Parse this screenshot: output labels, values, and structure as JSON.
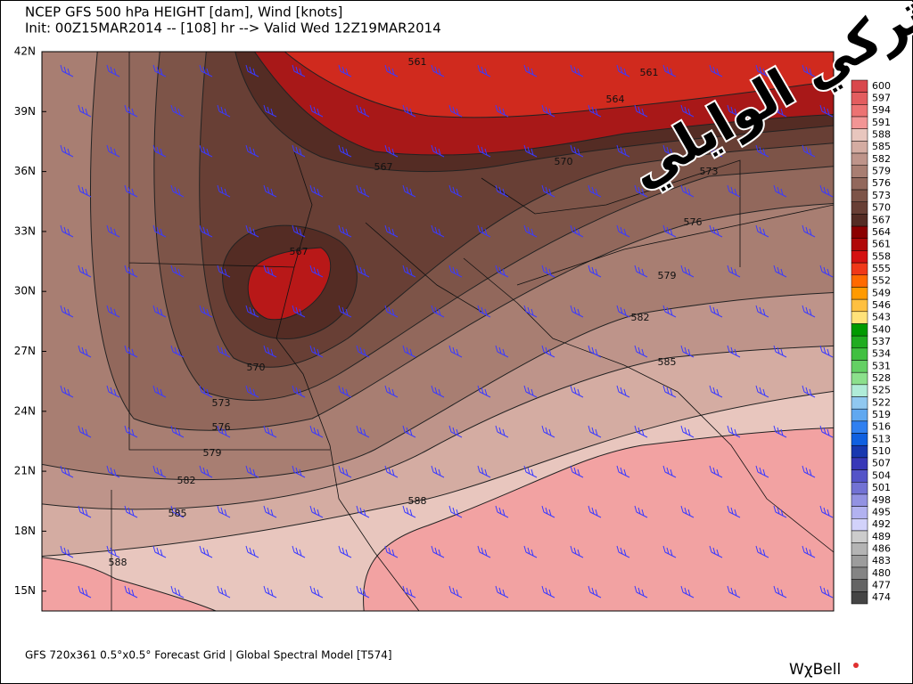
{
  "header": {
    "title": "NCEP GFS 500 hPa HEIGHT [dam], Wind [knots]",
    "subtitle": "Init: 00Z15MAR2014 -- [108] hr --> Valid Wed 12Z19MAR2014"
  },
  "watermark": "تركي الوايلي",
  "map": {
    "latitude_labels": [
      "42N",
      "39N",
      "36N",
      "33N",
      "30N",
      "27N",
      "24N",
      "21N",
      "18N",
      "15N"
    ],
    "contour_labels": [
      561,
      561,
      564,
      567,
      570,
      573,
      576,
      579,
      582,
      585,
      570,
      573,
      576,
      579,
      582,
      585,
      588,
      588,
      567
    ]
  },
  "colorbar": {
    "levels": [
      600,
      597,
      594,
      591,
      588,
      585,
      582,
      579,
      576,
      573,
      570,
      567,
      564,
      561,
      558,
      555,
      552,
      549,
      546,
      543,
      540,
      537,
      534,
      531,
      528,
      525,
      522,
      519,
      516,
      513,
      510,
      507,
      504,
      501,
      498,
      495,
      492,
      489,
      486,
      483,
      480,
      477,
      474
    ],
    "colors": [
      "#d9474c",
      "#e35d5f",
      "#ec7373",
      "#f29595",
      "#e8c6be",
      "#d4aca2",
      "#be948a",
      "#a87e72",
      "#92685c",
      "#7d5448",
      "#683f35",
      "#542c24",
      "#8b0000",
      "#b00808",
      "#d41010",
      "#f03818",
      "#ff6a00",
      "#ff9a00",
      "#ffc040",
      "#ffe27a",
      "#009a00",
      "#20ac20",
      "#40c040",
      "#64d064",
      "#8ce08c",
      "#b0ecd8",
      "#90c8f0",
      "#60a8f0",
      "#3080f0",
      "#1060e0",
      "#1838b0",
      "#3838b8",
      "#5454c8",
      "#7272d4",
      "#9292e2",
      "#b2b2f0",
      "#d2d2fa",
      "#cccccc",
      "#b4b4b4",
      "#9c9c9c",
      "#848484",
      "#646464",
      "#444444"
    ]
  },
  "footer": {
    "model": "GFS 720x361 0.5°x0.5° Forecast Grid | Global Spectral Model [T574]",
    "logo": "WχBell"
  }
}
